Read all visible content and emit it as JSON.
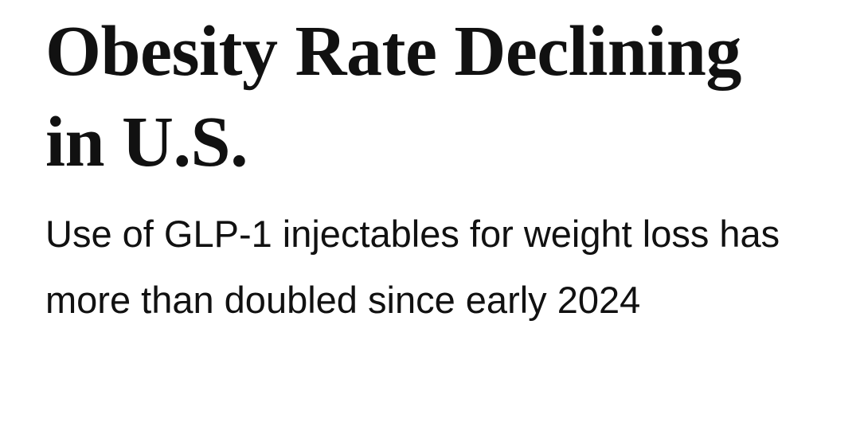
{
  "header": {
    "title": "Obesity Rate Declining in U.S.",
    "subtitle": "Use of GLP-1 injectables for weight loss has more than doubled since early 2024"
  }
}
